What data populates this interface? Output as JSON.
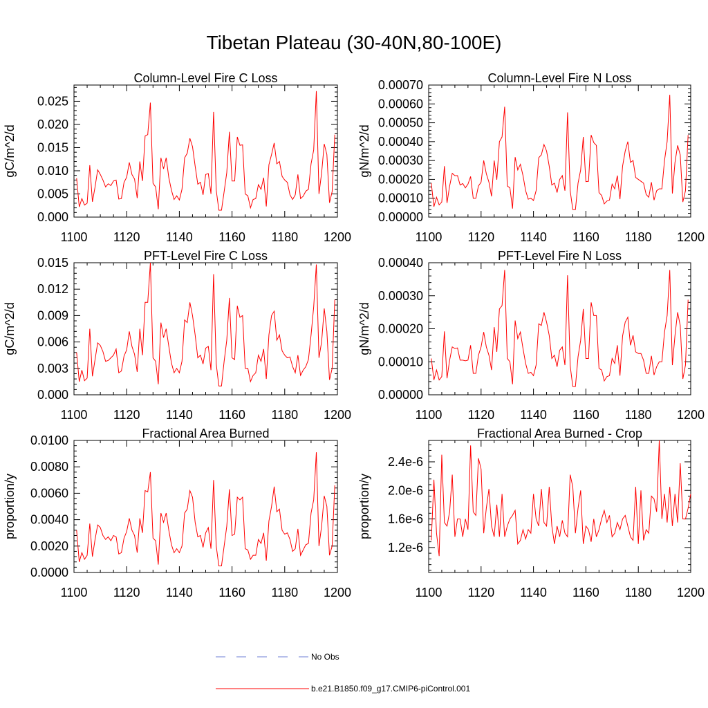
{
  "title": "Tibetan Plateau (30-40N,80-100E)",
  "colors": {
    "series": "#ff0000",
    "obs": "#6e7fd6",
    "axis": "#000000"
  },
  "legend": [
    {
      "label": "No Obs",
      "style": "dashed",
      "color": "#6e7fd6"
    },
    {
      "label": "b.e21.B1850.f09_g17.CMIP6-piControl.001",
      "style": "solid",
      "color": "#ff0000"
    }
  ],
  "chart_data": [
    {
      "type": "line",
      "title": "Column-Level Fire C Loss",
      "ylabel": "gC/m^2/d",
      "xlim": [
        1100,
        1200
      ],
      "xticks": [
        1100,
        1120,
        1140,
        1160,
        1180,
        1200
      ],
      "ylim": [
        0,
        0.0285
      ],
      "yticks": [
        0.0,
        0.005,
        0.01,
        0.015,
        0.02,
        0.025
      ],
      "ytick_labels": [
        "0.000",
        "0.005",
        "0.010",
        "0.015",
        "0.020",
        "0.025"
      ],
      "x_start": 1101,
      "values": [
        0.0084,
        0.0022,
        0.004,
        0.0026,
        0.003,
        0.0112,
        0.0033,
        0.0065,
        0.0102,
        0.0092,
        0.008,
        0.0065,
        0.0072,
        0.0068,
        0.0078,
        0.008,
        0.0039,
        0.004,
        0.0075,
        0.0086,
        0.0118,
        0.0092,
        0.0082,
        0.0041,
        0.012,
        0.0078,
        0.0175,
        0.0178,
        0.0247,
        0.0073,
        0.0065,
        0.0017,
        0.0128,
        0.0104,
        0.0128,
        0.0085,
        0.0058,
        0.0038,
        0.0046,
        0.0037,
        0.006,
        0.0128,
        0.0138,
        0.017,
        0.0152,
        0.011,
        0.0071,
        0.0075,
        0.0048,
        0.0092,
        0.0094,
        0.005,
        0.0227,
        0.0058,
        0.0015,
        0.0015,
        0.0055,
        0.0096,
        0.0184,
        0.0078,
        0.0078,
        0.0173,
        0.0155,
        0.0156,
        0.005,
        0.0046,
        0.002,
        0.0038,
        0.004,
        0.007,
        0.006,
        0.0085,
        0.0023,
        0.0113,
        0.0135,
        0.016,
        0.0115,
        0.012,
        0.0088,
        0.008,
        0.0075,
        0.0048,
        0.0038,
        0.0048,
        0.0092,
        0.004,
        0.0045,
        0.0056,
        0.006,
        0.0115,
        0.0145,
        0.0272,
        0.005,
        0.0095,
        0.0158,
        0.0135,
        0.0031,
        0.0055,
        0.0178
      ]
    },
    {
      "type": "line",
      "title": "Column-Level Fire N Loss",
      "ylabel": "gN/m^2/d",
      "xlim": [
        1100,
        1200
      ],
      "xticks": [
        1100,
        1120,
        1140,
        1160,
        1180,
        1200
      ],
      "ylim": [
        0,
        0.0007
      ],
      "yticks": [
        0.0,
        0.0001,
        0.0002,
        0.0003,
        0.0004,
        0.0005,
        0.0006,
        0.0007
      ],
      "ytick_labels": [
        "0.00000",
        "0.00010",
        "0.00020",
        "0.00030",
        "0.00040",
        "0.00050",
        "0.00060",
        "0.00070"
      ],
      "x_start": 1101,
      "values": [
        0.00018,
        5.5e-05,
        0.000105,
        6.5e-05,
        8e-05,
        0.00027,
        7.5e-05,
        0.000165,
        0.000232,
        0.00022,
        0.00022,
        0.00017,
        0.000178,
        0.000155,
        0.000175,
        0.000215,
        0.0001,
        0.0001,
        0.000165,
        0.000185,
        0.0003,
        0.00023,
        0.000185,
        0.00011,
        0.0003,
        0.000198,
        0.0004,
        0.000425,
        0.000585,
        0.000165,
        0.000155,
        4.5e-05,
        0.000318,
        0.00025,
        0.00028,
        0.00022,
        0.00014,
        9.5e-05,
        0.0001,
        8.8e-05,
        0.00014,
        0.000315,
        0.00033,
        0.000385,
        0.00035,
        0.00027,
        0.00017,
        0.00018,
        0.00013,
        0.0002,
        0.00022,
        0.00014,
        0.000555,
        0.00014,
        4e-05,
        4e-05,
        0.00018,
        0.00025,
        0.000425,
        0.000188,
        0.00019,
        0.000435,
        0.000395,
        0.00038,
        0.00013,
        0.000115,
        7e-05,
        8.5e-05,
        9e-05,
        0.000175,
        0.00015,
        0.00022,
        9.5e-05,
        0.00027,
        0.00035,
        0.0004,
        0.00029,
        0.0003,
        0.00021,
        0.0002,
        0.00019,
        0.00018,
        0.00012,
        0.000105,
        0.000185,
        9e-05,
        0.00014,
        0.00015,
        0.00015,
        0.0003,
        0.0004,
        0.000648,
        0.000125,
        0.00029,
        0.00038,
        0.00033,
        8e-05,
        0.00014,
        0.000435
      ]
    },
    {
      "type": "line",
      "title": "PFT-Level Fire C Loss",
      "ylabel": "gC/m^2/d",
      "xlim": [
        1100,
        1200
      ],
      "xticks": [
        1100,
        1120,
        1140,
        1160,
        1180,
        1200
      ],
      "ylim": [
        0,
        0.015
      ],
      "yticks": [
        0.0,
        0.003,
        0.006,
        0.009,
        0.012,
        0.015
      ],
      "ytick_labels": [
        "0.000",
        "0.003",
        "0.006",
        "0.009",
        "0.012",
        "0.015"
      ],
      "x_start": 1101,
      "values": [
        0.0048,
        0.0015,
        0.0028,
        0.0016,
        0.0019,
        0.0075,
        0.0021,
        0.004,
        0.0059,
        0.0056,
        0.0049,
        0.0038,
        0.0039,
        0.0042,
        0.0045,
        0.0052,
        0.0025,
        0.0027,
        0.0044,
        0.0051,
        0.0072,
        0.0055,
        0.0046,
        0.0026,
        0.0075,
        0.0045,
        0.0105,
        0.0105,
        0.015,
        0.0042,
        0.0038,
        0.0012,
        0.0082,
        0.0065,
        0.0075,
        0.0055,
        0.0036,
        0.0025,
        0.003,
        0.0025,
        0.0038,
        0.0085,
        0.0082,
        0.0105,
        0.009,
        0.0068,
        0.0042,
        0.0045,
        0.0035,
        0.0053,
        0.0055,
        0.0028,
        0.0137,
        0.0035,
        0.001,
        0.001,
        0.0038,
        0.0062,
        0.011,
        0.0042,
        0.004,
        0.0101,
        0.0088,
        0.009,
        0.003,
        0.003,
        0.0015,
        0.0022,
        0.0025,
        0.0045,
        0.0038,
        0.0052,
        0.0018,
        0.0068,
        0.009,
        0.0095,
        0.0062,
        0.0068,
        0.005,
        0.0045,
        0.0042,
        0.0043,
        0.0032,
        0.0025,
        0.0045,
        0.0022,
        0.0028,
        0.0032,
        0.004,
        0.0068,
        0.01,
        0.0148,
        0.0042,
        0.006,
        0.0098,
        0.0072,
        0.0017,
        0.003,
        0.0108
      ]
    },
    {
      "type": "line",
      "title": "PFT-Level Fire N Loss",
      "ylabel": "gN/m^2/d",
      "xlim": [
        1100,
        1200
      ],
      "xticks": [
        1100,
        1120,
        1140,
        1160,
        1180,
        1200
      ],
      "ylim": [
        0,
        0.0004
      ],
      "yticks": [
        0.0,
        0.0001,
        0.0002,
        0.0003,
        0.0004
      ],
      "ytick_labels": [
        "0.00000",
        "0.00010",
        "0.00020",
        "0.00030",
        "0.00040"
      ],
      "x_start": 1101,
      "values": [
        0.00011,
        4.5e-05,
        7.5e-05,
        4.5e-05,
        5.5e-05,
        0.000192,
        5e-05,
        0.000105,
        0.000145,
        0.00014,
        0.000142,
        0.000105,
        0.000105,
        0.000103,
        0.000105,
        0.00015,
        6.5e-05,
        6.5e-05,
        0.00012,
        0.000145,
        0.00019,
        0.000145,
        0.00012,
        7.5e-05,
        0.000205,
        0.00013,
        0.00026,
        0.00027,
        0.000378,
        0.00011,
        0.0001,
        3.2e-05,
        0.000225,
        0.00017,
        0.00019,
        0.00014,
        9.5e-05,
        6.5e-05,
        6.8e-05,
        5.8e-05,
        9e-05,
        0.000215,
        0.00021,
        0.00025,
        0.00022,
        0.00018,
        0.00011,
        0.00012,
        8.5e-05,
        0.000135,
        0.000145,
        9e-05,
        0.000362,
        8.8e-05,
        2.5e-05,
        2.5e-05,
        0.000115,
        0.000165,
        0.00026,
        0.00011,
        0.00011,
        0.00028,
        0.00024,
        0.00024,
        8e-05,
        7.5e-05,
        4.2e-05,
        5.5e-05,
        5.8e-05,
        0.00011,
        9.5e-05,
        0.00015,
        5.8e-05,
        0.000178,
        0.00022,
        0.000235,
        0.00015,
        0.00018,
        0.00013,
        0.000125,
        0.000125,
        0.000105,
        6.5e-05,
        6.5e-05,
        0.000118,
        6e-05,
        8.5e-05,
        0.0001,
        0.0001,
        0.00019,
        0.00024,
        0.000378,
        9e-05,
        0.00018,
        0.00025,
        0.00021,
        4.8e-05,
        9e-05,
        0.000288
      ]
    },
    {
      "type": "line",
      "title": "Fractional Area Burned",
      "ylabel": "proportion/y",
      "xlim": [
        1100,
        1200
      ],
      "xticks": [
        1100,
        1120,
        1140,
        1160,
        1180,
        1200
      ],
      "ylim": [
        0,
        0.01
      ],
      "yticks": [
        0.0,
        0.002,
        0.004,
        0.006,
        0.008,
        0.01
      ],
      "ytick_labels": [
        "0.0000",
        "0.0020",
        "0.0040",
        "0.0060",
        "0.0080",
        "0.0100"
      ],
      "x_start": 1101,
      "values": [
        0.0032,
        0.0008,
        0.0015,
        0.001,
        0.0013,
        0.0037,
        0.0012,
        0.0025,
        0.0036,
        0.0034,
        0.0028,
        0.0025,
        0.0027,
        0.0024,
        0.0028,
        0.0027,
        0.0014,
        0.0015,
        0.0026,
        0.0031,
        0.0041,
        0.0032,
        0.0028,
        0.0015,
        0.0041,
        0.003,
        0.0062,
        0.0061,
        0.0076,
        0.0026,
        0.0024,
        0.0006,
        0.0045,
        0.0038,
        0.0045,
        0.0032,
        0.0021,
        0.0015,
        0.0018,
        0.0015,
        0.002,
        0.0045,
        0.0048,
        0.0062,
        0.0057,
        0.0038,
        0.0027,
        0.0028,
        0.0019,
        0.003,
        0.0034,
        0.0018,
        0.007,
        0.002,
        0.0005,
        0.0005,
        0.002,
        0.0035,
        0.0063,
        0.0028,
        0.0029,
        0.0057,
        0.0055,
        0.0057,
        0.0018,
        0.0017,
        0.001,
        0.0013,
        0.0013,
        0.0025,
        0.0022,
        0.003,
        0.0009,
        0.0039,
        0.005,
        0.0065,
        0.0046,
        0.0048,
        0.0032,
        0.0029,
        0.003,
        0.0025,
        0.0016,
        0.0018,
        0.0033,
        0.0013,
        0.0017,
        0.0021,
        0.0022,
        0.0045,
        0.0055,
        0.0091,
        0.002,
        0.0035,
        0.0058,
        0.005,
        0.0013,
        0.002,
        0.0066
      ]
    },
    {
      "type": "line",
      "title": "Fractional Area Burned - Crop",
      "ylabel": "proportion/y",
      "xlim": [
        1100,
        1200
      ],
      "xticks": [
        1100,
        1120,
        1140,
        1160,
        1180,
        1200
      ],
      "ylim": [
        8.5e-07,
        2.7e-06
      ],
      "yticks": [
        1.2e-06,
        1.6e-06,
        2e-06,
        2.4e-06
      ],
      "ytick_labels": [
        "1.2e-6",
        "1.6e-6",
        "2.0e-6",
        "2.4e-6"
      ],
      "x_start": 1101,
      "values": [
        1.3e-06,
        2.15e-06,
        1.4e-06,
        1.08e-06,
        2.5e-06,
        1.55e-06,
        1.5e-06,
        1.7e-06,
        2.22e-06,
        1.35e-06,
        1.6e-06,
        1.6e-06,
        1.35e-06,
        1.6e-06,
        1.45e-06,
        2.63e-06,
        1.7e-06,
        1.65e-06,
        2.45e-06,
        2.3e-06,
        1.4e-06,
        1.75e-06,
        2.02e-06,
        1.5e-06,
        1.35e-06,
        1.8e-06,
        1.35e-06,
        1.95e-06,
        1.35e-06,
        1.5e-06,
        1.6e-06,
        1.65e-06,
        1.72e-06,
        1.25e-06,
        1.3e-06,
        1.45e-06,
        1.32e-06,
        1.45e-06,
        1.4e-06,
        1.95e-06,
        1.6e-06,
        1.5e-06,
        2.02e-06,
        1.55e-06,
        1.5e-06,
        2.05e-06,
        1.5e-06,
        1.25e-06,
        1.5e-06,
        1.35e-06,
        1.58e-06,
        1.4e-06,
        1.35e-06,
        2.22e-06,
        2.05e-06,
        1.4e-06,
        1.75e-06,
        2e-06,
        1.25e-06,
        1.5e-06,
        1.45e-06,
        1.28e-06,
        1.6e-06,
        1.35e-06,
        1.45e-06,
        1.6e-06,
        1.72e-06,
        1.55e-06,
        1.65e-06,
        1.35e-06,
        1.4e-06,
        1.55e-06,
        1.45e-06,
        1.6e-06,
        1.65e-06,
        1.5e-06,
        1.35e-06,
        1.3e-06,
        2.05e-06,
        1.25e-06,
        2e-06,
        1.3e-06,
        1.45e-06,
        1.4e-06,
        1.92e-06,
        1.88e-06,
        1.7e-06,
        2.7e-06,
        1.6e-06,
        1.95e-06,
        1.55e-06,
        2.05e-06,
        1.5e-06,
        1.95e-06,
        1.55e-06,
        2.38e-06,
        1.6e-06,
        1.6e-06,
        1.75e-06,
        1.95e-06
      ]
    }
  ]
}
